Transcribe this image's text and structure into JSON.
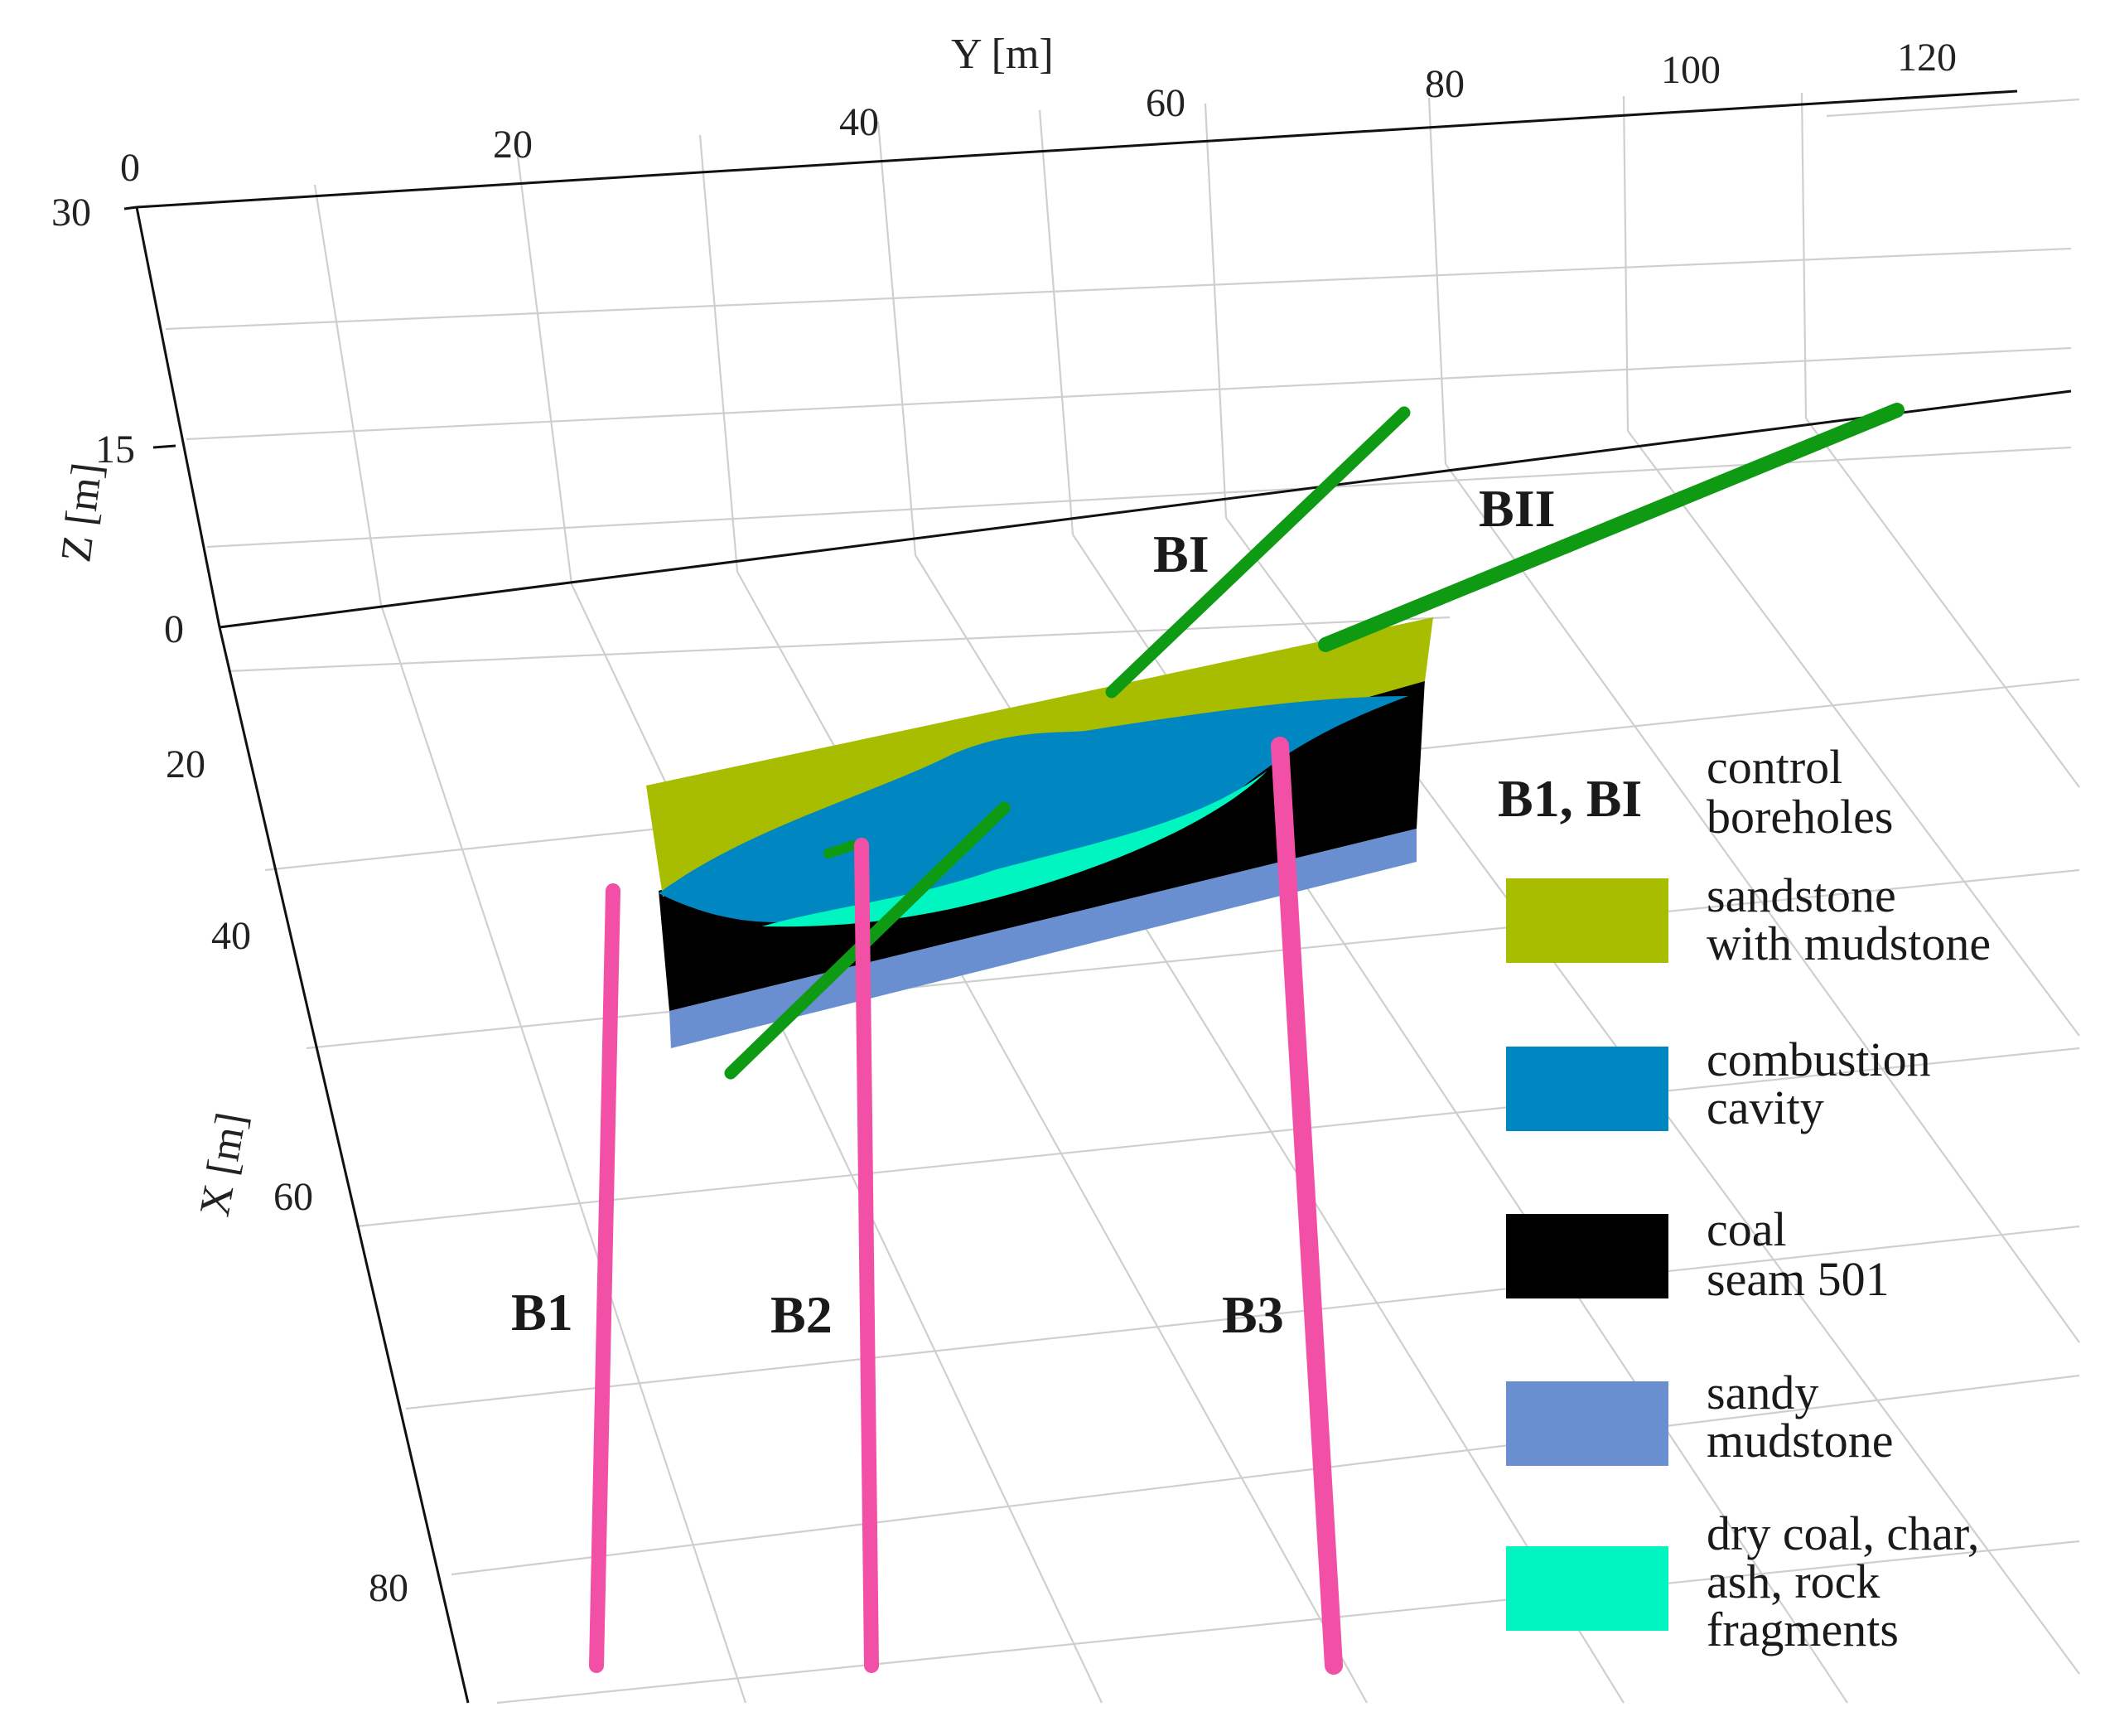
{
  "axes": {
    "y": {
      "title": "Y [m]",
      "ticks": [
        "0",
        "20",
        "40",
        "60",
        "80",
        "100",
        "120"
      ]
    },
    "z": {
      "title": "Z [m]",
      "ticks": [
        "30",
        "15",
        "0"
      ]
    },
    "x": {
      "title": "X [m]",
      "ticks": [
        "20",
        "40",
        "60",
        "80"
      ]
    }
  },
  "boreholes": {
    "control": [
      "BI",
      "BII"
    ],
    "production": [
      "B1",
      "B2",
      "B3"
    ]
  },
  "legend": {
    "boreholes_key": "B1, BI",
    "boreholes_desc": [
      "control",
      "boreholes"
    ],
    "items": [
      {
        "label": [
          "sandstone",
          "with mudstone"
        ],
        "color": "#a8bd00"
      },
      {
        "label": [
          "combustion",
          "cavity"
        ],
        "color": "#0087c1"
      },
      {
        "label": [
          "coal",
          "seam 501"
        ],
        "color": "#000000"
      },
      {
        "label": [
          "sandy",
          "mudstone"
        ],
        "color": "#6a8fd0"
      },
      {
        "label": [
          "dry coal, char,",
          "ash, rock",
          "fragments"
        ],
        "color": "#00f5c0"
      }
    ]
  },
  "colors": {
    "control_borehole": "#0e9a12",
    "production_borehole": "#f24fa6",
    "sandstone": "#a8bd00",
    "cavity": "#0087c1",
    "coal": "#000000",
    "sandy_mudstone": "#6a8fd0",
    "fragments": "#00f5c0"
  }
}
